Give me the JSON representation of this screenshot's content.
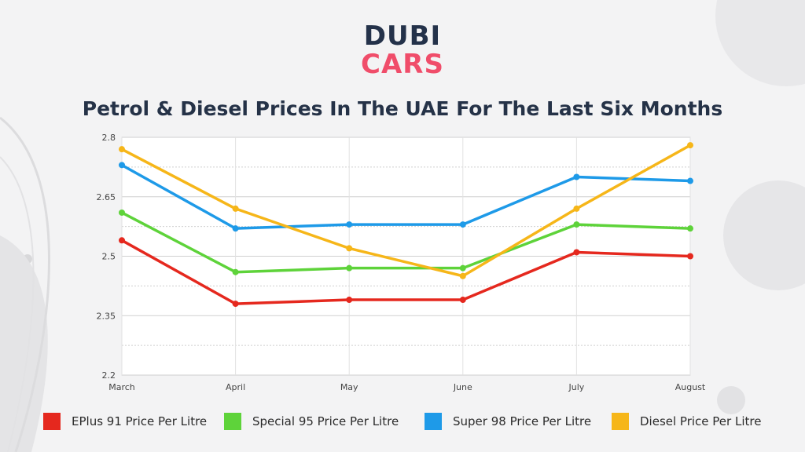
{
  "brand": {
    "line1": "DUBI",
    "line2": "CARS"
  },
  "colors": {
    "background": "#f3f3f4",
    "title": "#253247",
    "brand_dark": "#24324a",
    "brand_pink": "#f04d6a",
    "grid": "#d4d4d4"
  },
  "chart_data": {
    "type": "line",
    "title": "Petrol & Diesel Prices In The UAE For The Last Six Months",
    "categories": [
      "March",
      "April",
      "May",
      "June",
      "July",
      "August"
    ],
    "series": [
      {
        "name": "EPlus 91 Price Per Litre",
        "color": "#e5281e",
        "values": [
          2.54,
          2.38,
          2.39,
          2.39,
          2.51,
          2.5
        ]
      },
      {
        "name": "Special 95 Price Per Litre",
        "color": "#5ed33a",
        "values": [
          2.61,
          2.46,
          2.47,
          2.47,
          2.58,
          2.57
        ]
      },
      {
        "name": "Super 98 Price Per Litre",
        "color": "#1e9ae8",
        "values": [
          2.73,
          2.57,
          2.58,
          2.58,
          2.7,
          2.69
        ]
      },
      {
        "name": "Diesel Price Per Litre",
        "color": "#f6b619",
        "values": [
          2.77,
          2.62,
          2.52,
          2.45,
          2.62,
          2.78
        ]
      }
    ],
    "ylim": [
      2.2,
      2.8
    ],
    "yticks": [
      "2.2",
      "2.35",
      "2.5",
      "2.65",
      "2.8"
    ],
    "grid": true,
    "legend_position": "bottom"
  }
}
